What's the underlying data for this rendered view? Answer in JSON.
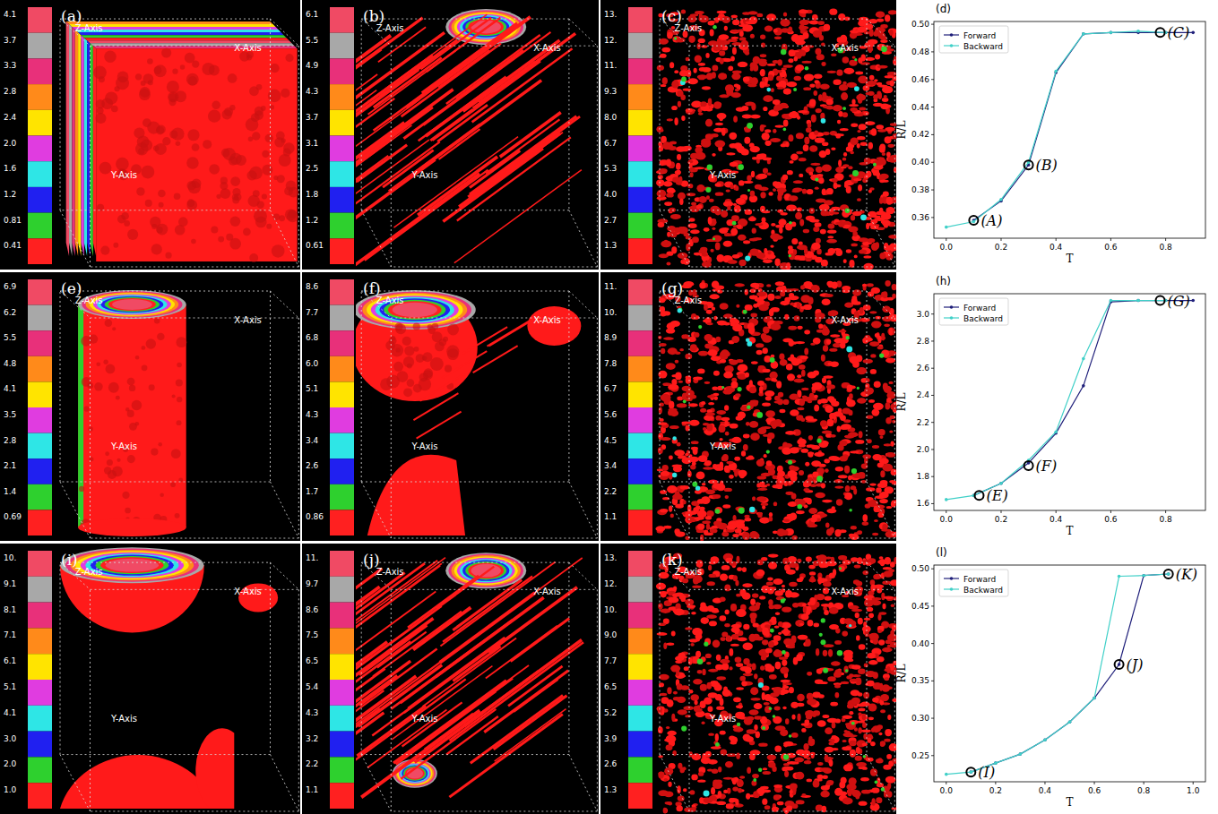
{
  "renderings": [
    {
      "letter": "(a)",
      "colorbar_labels": [
        "4.1",
        "3.7",
        "3.3",
        "2.8",
        "2.4",
        "2.0",
        "1.6",
        "1.2",
        "0.81",
        "0.41"
      ],
      "colors": [
        "#f04a64",
        "#a8a8a8",
        "#e8307a",
        "#ff8a1a",
        "#ffe400",
        "#e03ce0",
        "#2ee6e6",
        "#2020f0",
        "#2ed02e",
        "#ff2020"
      ],
      "axis_labels": [
        "Z-Axis",
        "X-Axis",
        "Y-Axis"
      ]
    },
    {
      "letter": "(b)",
      "colorbar_labels": [
        "6.1",
        "5.5",
        "4.9",
        "4.3",
        "3.7",
        "3.1",
        "2.5",
        "1.8",
        "1.2",
        "0.61"
      ],
      "colors": [
        "#f04a64",
        "#a8a8a8",
        "#e8307a",
        "#ff8a1a",
        "#ffe400",
        "#e03ce0",
        "#2ee6e6",
        "#2020f0",
        "#2ed02e",
        "#ff2020"
      ],
      "axis_labels": [
        "Z-Axis",
        "X-Axis",
        "Y-Axis"
      ]
    },
    {
      "letter": "(c)",
      "colorbar_labels": [
        "13.",
        "12.",
        "11.",
        "9.3",
        "8.0",
        "6.7",
        "5.3",
        "4.0",
        "2.7",
        "1.3"
      ],
      "colors": [
        "#f04a64",
        "#a8a8a8",
        "#e8307a",
        "#ff8a1a",
        "#ffe400",
        "#e03ce0",
        "#2ee6e6",
        "#2020f0",
        "#2ed02e",
        "#ff2020"
      ],
      "axis_labels": [
        "Z-Axis",
        "X-Axis",
        "Y-Axis"
      ]
    },
    {
      "letter": "(e)",
      "colorbar_labels": [
        "6.9",
        "6.2",
        "5.5",
        "4.8",
        "4.1",
        "3.5",
        "2.8",
        "2.1",
        "1.4",
        "0.69"
      ],
      "colors": [
        "#f04a64",
        "#a8a8a8",
        "#e8307a",
        "#ff8a1a",
        "#ffe400",
        "#e03ce0",
        "#2ee6e6",
        "#2020f0",
        "#2ed02e",
        "#ff2020"
      ],
      "axis_labels": [
        "Z-Axis",
        "X-Axis",
        "Y-Axis"
      ]
    },
    {
      "letter": "(f)",
      "colorbar_labels": [
        "8.6",
        "7.7",
        "6.8",
        "6.0",
        "5.1",
        "4.3",
        "3.4",
        "2.6",
        "1.7",
        "0.86"
      ],
      "colors": [
        "#f04a64",
        "#a8a8a8",
        "#e8307a",
        "#ff8a1a",
        "#ffe400",
        "#e03ce0",
        "#2ee6e6",
        "#2020f0",
        "#2ed02e",
        "#ff2020"
      ],
      "axis_labels": [
        "Z-Axis",
        "X-Axis",
        "Y-Axis"
      ]
    },
    {
      "letter": "(g)",
      "colorbar_labels": [
        "11.",
        "10.",
        "8.9",
        "7.8",
        "6.7",
        "5.6",
        "4.5",
        "3.4",
        "2.2",
        "1.1"
      ],
      "colors": [
        "#f04a64",
        "#a8a8a8",
        "#e8307a",
        "#ff8a1a",
        "#ffe400",
        "#e03ce0",
        "#2ee6e6",
        "#2020f0",
        "#2ed02e",
        "#ff2020"
      ],
      "axis_labels": [
        "Z-Axis",
        "X-Axis",
        "Y-Axis"
      ]
    },
    {
      "letter": "(i)",
      "colorbar_labels": [
        "10.",
        "9.1",
        "8.1",
        "7.1",
        "6.1",
        "5.1",
        "4.1",
        "3.0",
        "2.0",
        "1.0"
      ],
      "colors": [
        "#f04a64",
        "#a8a8a8",
        "#e8307a",
        "#ff8a1a",
        "#ffe400",
        "#e03ce0",
        "#2ee6e6",
        "#2020f0",
        "#2ed02e",
        "#ff2020"
      ],
      "axis_labels": [
        "Z-Axis",
        "X-Axis",
        "Y-Axis"
      ]
    },
    {
      "letter": "(j)",
      "colorbar_labels": [
        "11.",
        "9.7",
        "8.6",
        "7.5",
        "6.5",
        "5.4",
        "4.3",
        "3.2",
        "2.2",
        "1.1"
      ],
      "colors": [
        "#f04a64",
        "#a8a8a8",
        "#e8307a",
        "#ff8a1a",
        "#ffe400",
        "#e03ce0",
        "#2ee6e6",
        "#2020f0",
        "#2ed02e",
        "#ff2020"
      ],
      "axis_labels": [
        "Z-Axis",
        "X-Axis",
        "Y-Axis"
      ]
    },
    {
      "letter": "(k)",
      "colorbar_labels": [
        "13.",
        "12.",
        "10.",
        "9.0",
        "7.7",
        "6.5",
        "5.2",
        "3.9",
        "2.6",
        "1.3"
      ],
      "colors": [
        "#f04a64",
        "#a8a8a8",
        "#e8307a",
        "#ff8a1a",
        "#ffe400",
        "#e03ce0",
        "#2ee6e6",
        "#2020f0",
        "#2ed02e",
        "#ff2020"
      ],
      "axis_labels": [
        "Z-Axis",
        "X-Axis",
        "Y-Axis"
      ]
    }
  ],
  "chart_data": [
    {
      "type": "line",
      "letter": "(d)",
      "x_label": "T",
      "y_label": "R/L",
      "x": [
        0.0,
        0.1,
        0.2,
        0.3,
        0.4,
        0.5,
        0.6,
        0.7,
        0.8,
        0.9
      ],
      "xlim": [
        -0.045,
        0.945
      ],
      "xticks": [
        {
          "value": 0,
          "label": "0.0"
        },
        0.2,
        0.4,
        0.6,
        0.8
      ],
      "ylim": [
        0.345,
        0.502
      ],
      "yticks": [
        0.36,
        0.38,
        {
          "value": 0.4,
          "label": "0.40"
        },
        0.42,
        0.44,
        0.46,
        0.48,
        {
          "value": 0.5,
          "label": "0.50"
        }
      ],
      "legend": "upper left",
      "marker": "circle",
      "series": [
        {
          "name": "Forward",
          "color": "#1f1f7a",
          "values": [
            null,
            0.358,
            0.372,
            0.398,
            0.465,
            0.493,
            0.494,
            0.494,
            0.494,
            0.494
          ]
        },
        {
          "name": "Backward",
          "color": "#40d0c8",
          "values": [
            0.353,
            0.357,
            0.373,
            0.4,
            0.466,
            0.493,
            0.494,
            0.495,
            0.494,
            null
          ]
        }
      ],
      "annotations": [
        {
          "text": "(A)",
          "x": 0.1,
          "y": 0.358
        },
        {
          "text": "(B)",
          "x": 0.3,
          "y": 0.398
        },
        {
          "text": "(C)",
          "x": 0.78,
          "y": 0.494
        }
      ]
    },
    {
      "type": "line",
      "letter": "(h)",
      "x_label": "T",
      "y_label": "R/L",
      "x": [
        0.0,
        0.1,
        0.2,
        0.3,
        0.4,
        0.5,
        0.6,
        0.7,
        0.8,
        0.9
      ],
      "xlim": [
        -0.045,
        0.945
      ],
      "xticks": [
        {
          "value": 0,
          "label": "0.0"
        },
        0.2,
        0.4,
        0.6,
        0.8
      ],
      "ylim": [
        1.55,
        3.15
      ],
      "yticks": [
        1.6,
        1.8,
        {
          "value": 2,
          "label": "2.0"
        },
        2.2,
        2.4,
        2.6,
        2.8,
        {
          "value": 3,
          "label": "3.0"
        }
      ],
      "legend": "upper left",
      "marker": "circle",
      "series": [
        {
          "name": "Forward",
          "color": "#1f1f7a",
          "values": [
            null,
            1.66,
            1.75,
            1.9,
            2.12,
            2.47,
            3.09,
            3.1,
            3.1,
            3.1
          ]
        },
        {
          "name": "Backward",
          "color": "#40d0c8",
          "values": [
            1.63,
            1.66,
            1.75,
            1.92,
            2.13,
            2.67,
            3.1,
            3.1,
            3.1,
            null
          ]
        }
      ],
      "annotations": [
        {
          "text": "(E)",
          "x": 0.12,
          "y": 1.66
        },
        {
          "text": "(F)",
          "x": 0.3,
          "y": 1.88
        },
        {
          "text": "(G)",
          "x": 0.78,
          "y": 3.1
        }
      ]
    },
    {
      "type": "line",
      "letter": "(l)",
      "x_label": "T",
      "y_label": "R/L",
      "x": [
        0.0,
        0.1,
        0.2,
        0.3,
        0.4,
        0.5,
        0.6,
        0.7,
        0.8,
        0.9
      ],
      "xlim": [
        -0.05,
        1.05
      ],
      "xticks": [
        {
          "value": 0,
          "label": "0.0"
        },
        0.2,
        0.4,
        0.6,
        0.8,
        {
          "value": 1,
          "label": "1.0"
        }
      ],
      "ylim": [
        0.215,
        0.505
      ],
      "yticks": [
        0.25,
        {
          "value": 0.3,
          "label": "0.30"
        },
        0.35,
        {
          "value": 0.4,
          "label": "0.40"
        },
        0.45,
        {
          "value": 0.5,
          "label": "0.50"
        }
      ],
      "legend": "upper left",
      "marker": "circle",
      "series": [
        {
          "name": "Forward",
          "color": "#1f1f7a",
          "values": [
            null,
            0.228,
            0.24,
            0.252,
            0.271,
            0.295,
            0.327,
            0.372,
            0.491,
            0.493
          ]
        },
        {
          "name": "Backward",
          "color": "#40d0c8",
          "values": [
            0.225,
            0.228,
            0.24,
            0.252,
            0.271,
            0.295,
            0.327,
            0.49,
            0.491,
            0.493
          ]
        }
      ],
      "annotations": [
        {
          "text": "(I)",
          "x": 0.1,
          "y": 0.228
        },
        {
          "text": "(J)",
          "x": 0.7,
          "y": 0.372
        },
        {
          "text": "(K)",
          "x": 0.9,
          "y": 0.493
        }
      ]
    }
  ]
}
